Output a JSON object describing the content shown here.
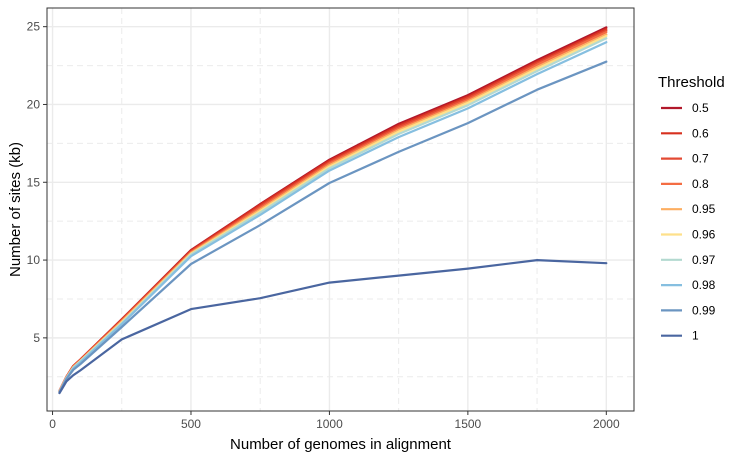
{
  "chart_data": {
    "type": "line",
    "xlabel": "Number of genomes in alignment",
    "ylabel": "Number of sites (kb)",
    "xlim": [
      -20,
      2100
    ],
    "ylim": [
      0.3,
      26.2
    ],
    "x_ticks": [
      0,
      500,
      1000,
      1500,
      2000
    ],
    "y_ticks": [
      5,
      10,
      15,
      20,
      25
    ],
    "grid": true,
    "legend_title": "Threshold",
    "legend_position": "right",
    "x": [
      25,
      50,
      75,
      100,
      250,
      500,
      750,
      1000,
      1250,
      1500,
      1750,
      2000
    ],
    "series": [
      {
        "name": "0.5",
        "color": "#b2182b",
        "values": [
          1.6,
          2.5,
          3.2,
          3.6,
          6.2,
          10.65,
          13.6,
          16.45,
          18.75,
          20.6,
          22.85,
          24.95
        ]
      },
      {
        "name": "0.6",
        "color": "#d7301f",
        "values": [
          1.6,
          2.5,
          3.2,
          3.6,
          6.18,
          10.6,
          13.55,
          16.38,
          18.65,
          20.5,
          22.75,
          24.85
        ]
      },
      {
        "name": "0.7",
        "color": "#e34a33",
        "values": [
          1.58,
          2.48,
          3.18,
          3.58,
          6.15,
          10.55,
          13.45,
          16.28,
          18.55,
          20.4,
          22.65,
          24.75
        ]
      },
      {
        "name": "0.8",
        "color": "#f46d43",
        "values": [
          1.57,
          2.47,
          3.15,
          3.55,
          6.1,
          10.5,
          13.35,
          16.2,
          18.45,
          20.3,
          22.55,
          24.65
        ]
      },
      {
        "name": "0.95",
        "color": "#fdae61",
        "values": [
          1.56,
          2.45,
          3.12,
          3.52,
          6.05,
          10.45,
          13.25,
          16.1,
          18.35,
          20.2,
          22.4,
          24.5
        ]
      },
      {
        "name": "0.96",
        "color": "#fee08b",
        "values": [
          1.55,
          2.43,
          3.1,
          3.5,
          6.0,
          10.4,
          13.15,
          16.0,
          18.25,
          20.1,
          22.3,
          24.4
        ]
      },
      {
        "name": "0.97",
        "color": "#b3d9d0",
        "values": [
          1.54,
          2.42,
          3.08,
          3.48,
          5.95,
          10.35,
          13.05,
          15.9,
          18.1,
          19.95,
          22.15,
          24.25
        ]
      },
      {
        "name": "0.98",
        "color": "#86bfe0",
        "values": [
          1.52,
          2.4,
          3.04,
          3.42,
          5.88,
          10.25,
          12.9,
          15.75,
          17.9,
          19.75,
          21.95,
          24.0
        ]
      },
      {
        "name": "0.99",
        "color": "#6b95c1",
        "values": [
          1.5,
          2.35,
          2.95,
          3.3,
          5.7,
          9.75,
          12.25,
          14.95,
          16.95,
          18.8,
          20.95,
          22.75
        ]
      },
      {
        "name": "1",
        "color": "#4a66a0",
        "values": [
          1.45,
          2.2,
          2.6,
          2.9,
          4.9,
          6.85,
          7.55,
          8.55,
          9.0,
          9.45,
          10.0,
          9.8
        ]
      }
    ]
  }
}
